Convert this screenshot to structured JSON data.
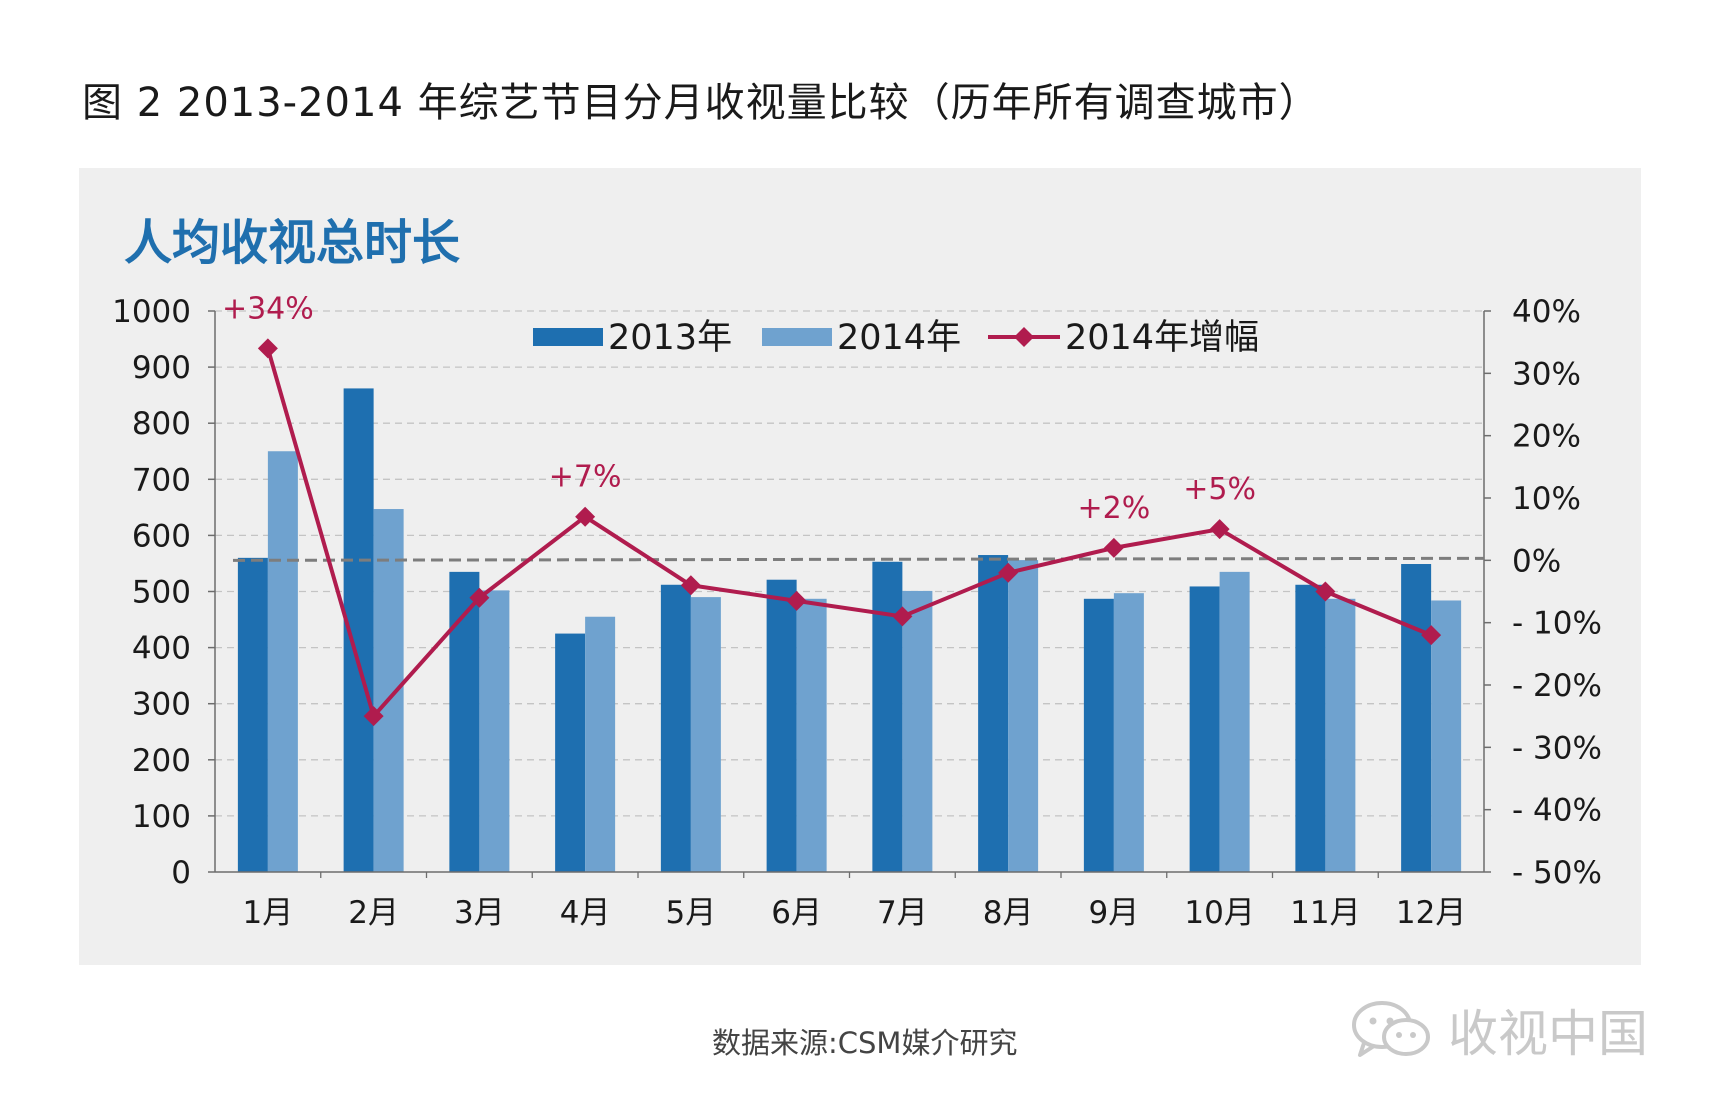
{
  "figure_title": "图 2  2013-2014 年综艺节目分月收视量比较（历年所有调查城市）",
  "source_text": "数据来源:CSM媒介研究",
  "watermark_text": "收视中国",
  "colors": {
    "series_2013": "#1e6fb0",
    "series_2014": "#6fa2cf",
    "growth_line": "#b01c4e",
    "panel_bg": "#efefef",
    "subtitle": "#1f6fae"
  },
  "chart_data": {
    "type": "bar",
    "title": "人均收视总时长",
    "categories": [
      "1月",
      "2月",
      "3月",
      "4月",
      "5月",
      "6月",
      "7月",
      "8月",
      "9月",
      "10月",
      "11月",
      "12月"
    ],
    "series": [
      {
        "name": "2013年",
        "axis": "left",
        "kind": "bar",
        "values": [
          560,
          862,
          535,
          425,
          512,
          521,
          553,
          565,
          487,
          509,
          512,
          549
        ]
      },
      {
        "name": "2014年",
        "axis": "left",
        "kind": "bar",
        "values": [
          750,
          647,
          502,
          455,
          490,
          487,
          501,
          556,
          497,
          535,
          487,
          484
        ]
      },
      {
        "name": "2014年增幅",
        "axis": "right",
        "kind": "line",
        "values": [
          34,
          -25,
          -6,
          7,
          -4,
          -6.5,
          -9,
          -2,
          2,
          5,
          -5,
          -12
        ]
      }
    ],
    "y_left": {
      "min": 0,
      "max": 1000,
      "step": 100,
      "ticks": [
        "0",
        "100",
        "200",
        "300",
        "400",
        "500",
        "600",
        "700",
        "800",
        "900",
        "1000"
      ]
    },
    "y_right": {
      "min": -50,
      "max": 40,
      "step": 10,
      "ticks": [
        "- 50%",
        "- 40%",
        "- 30%",
        "- 20%",
        "- 10%",
        "0%",
        "10%",
        "20%",
        "30%",
        "40%"
      ]
    },
    "reference_line": {
      "axis": "right",
      "value": 0,
      "style": "dashed"
    },
    "annotations": [
      {
        "category_index": 0,
        "text": "+34%"
      },
      {
        "category_index": 3,
        "text": "+7%"
      },
      {
        "category_index": 8,
        "text": "+2%"
      },
      {
        "category_index": 9,
        "text": "+5%"
      }
    ],
    "legend": {
      "position": "top-center",
      "entries": [
        "2013年",
        "2014年",
        "2014年增幅"
      ]
    },
    "grid": true
  }
}
